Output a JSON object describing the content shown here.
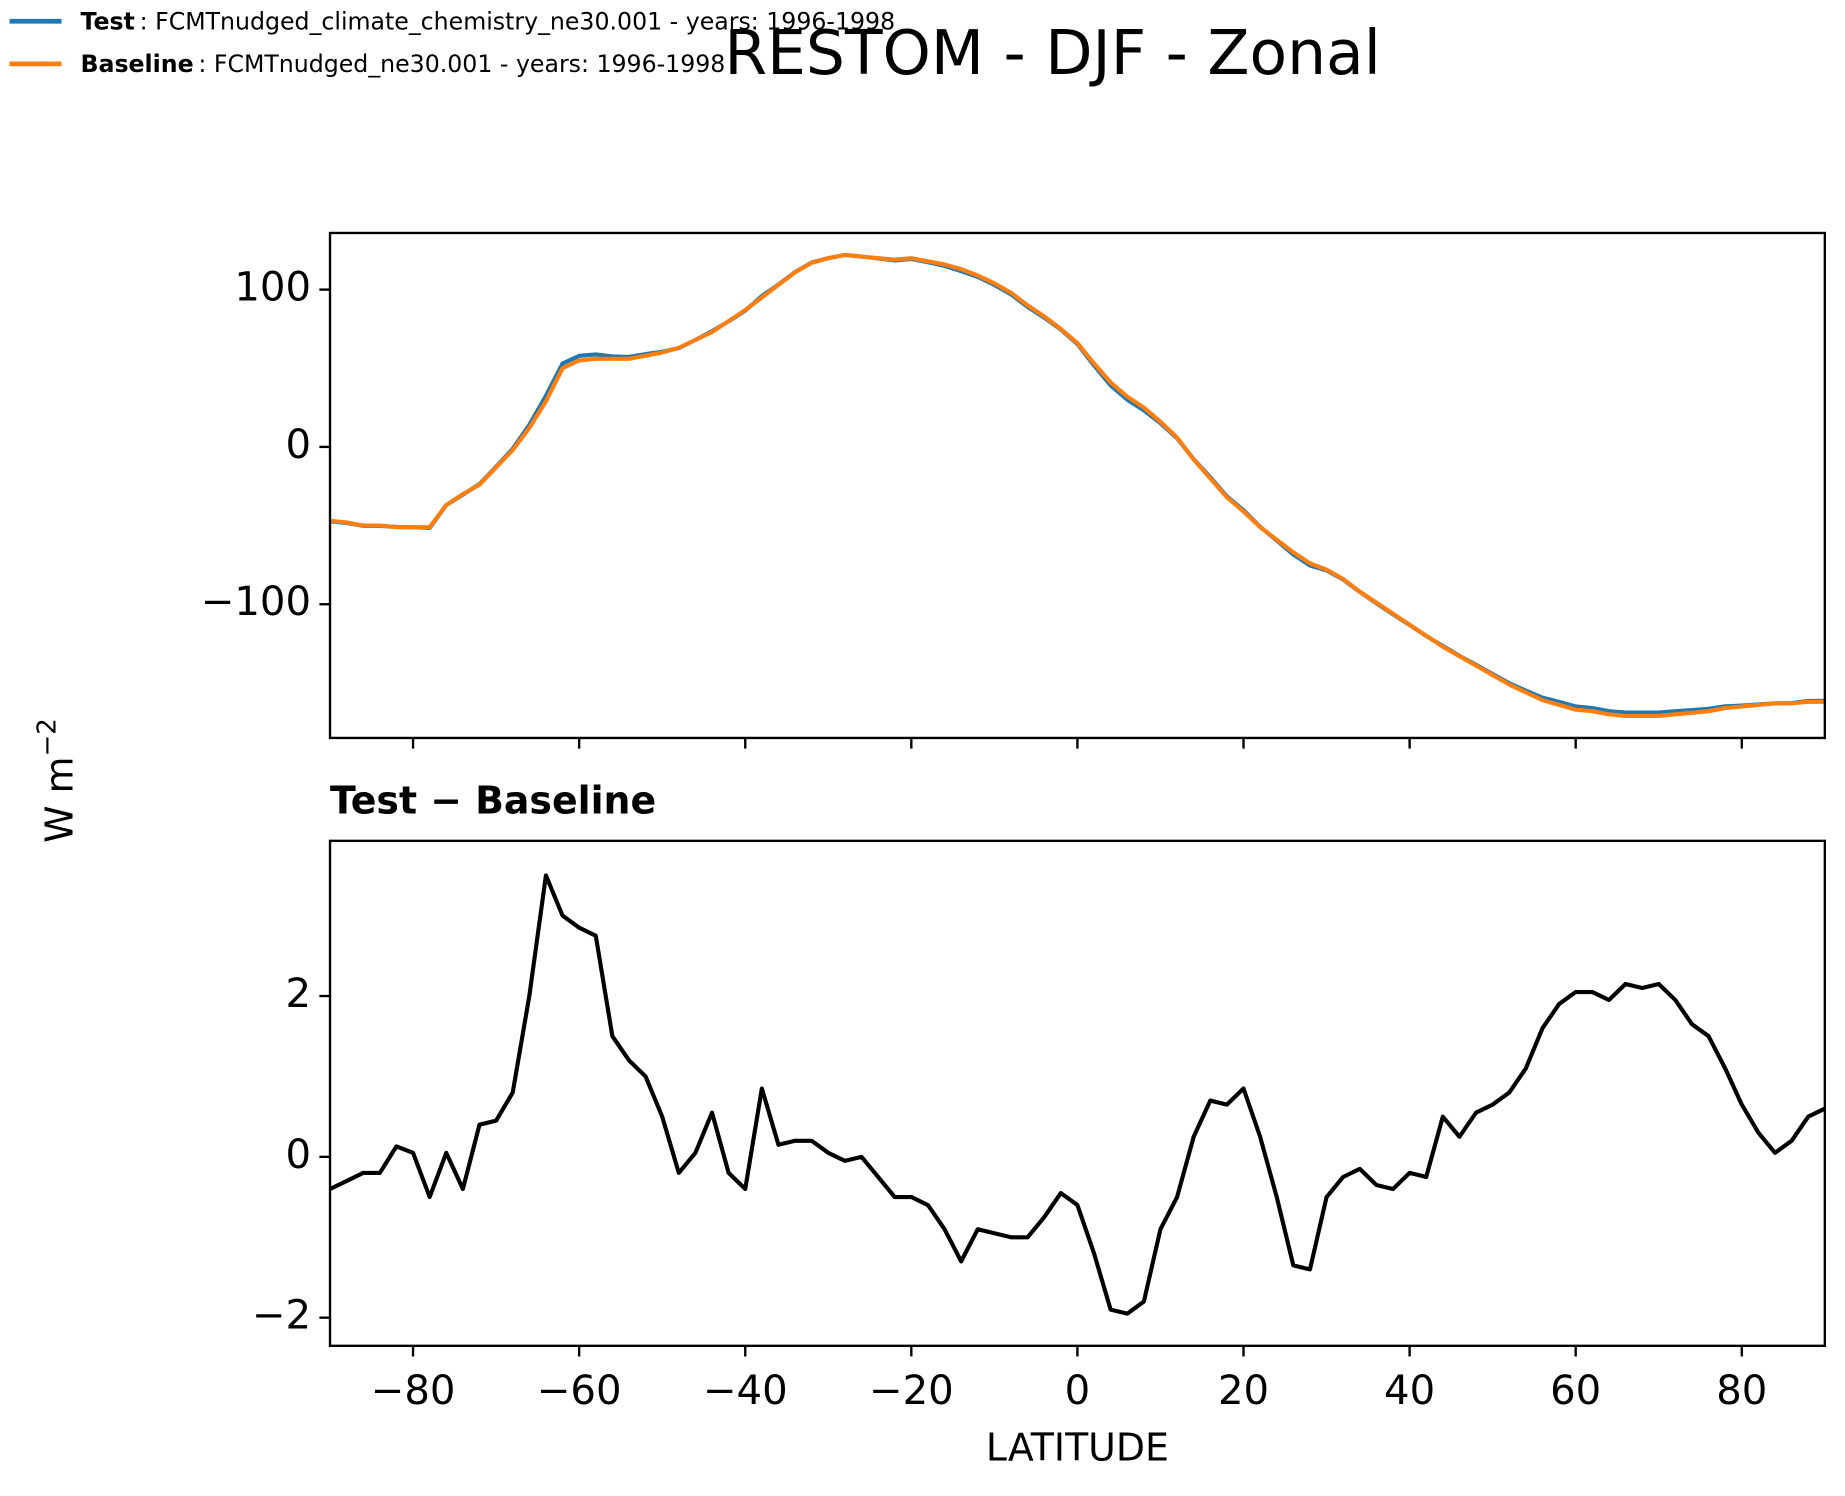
{
  "chart_data": [
    {
      "type": "line",
      "title": "RESTOM - DJF - Zonal",
      "ylabel": "W m",
      "ylabel_superscript": "−2",
      "x": [
        -90,
        -88,
        -86,
        -84,
        -82,
        -80,
        -78,
        -76,
        -74,
        -72,
        -70,
        -68,
        -66,
        -64,
        -62,
        -60,
        -58,
        -56,
        -54,
        -52,
        -50,
        -48,
        -46,
        -44,
        -42,
        -40,
        -38,
        -36,
        -34,
        -32,
        -30,
        -28,
        -26,
        -24,
        -22,
        -20,
        -18,
        -16,
        -14,
        -12,
        -10,
        -8,
        -6,
        -4,
        -2,
        0,
        2,
        4,
        6,
        8,
        10,
        12,
        14,
        16,
        18,
        20,
        22,
        24,
        26,
        28,
        30,
        32,
        34,
        36,
        38,
        40,
        42,
        44,
        46,
        48,
        50,
        52,
        54,
        56,
        58,
        60,
        62,
        64,
        66,
        68,
        70,
        72,
        74,
        76,
        78,
        80,
        82,
        84,
        86,
        88,
        90
      ],
      "series": [
        {
          "name": "Test",
          "legend_text": ": FCMTnudged_climate_chemistry_ne30.001 - years: 1996-1998",
          "color": "#1f77b4",
          "values": [
            -47.4,
            -48.3,
            -50.2,
            -50.2,
            -50.9,
            -51,
            -51.5,
            -37,
            -30.4,
            -23.6,
            -12.6,
            -1.2,
            14,
            32.5,
            53,
            57.9,
            58.8,
            57.5,
            57.2,
            59,
            60.5,
            62.8,
            68,
            73.6,
            79.8,
            86.6,
            95.9,
            103.2,
            111.2,
            117.2,
            120,
            122,
            121,
            119.8,
            118.5,
            119.5,
            117.4,
            115.1,
            111.7,
            108.1,
            103,
            97,
            89,
            82.2,
            74.6,
            65.4,
            51.8,
            39.1,
            30,
            23.2,
            15.1,
            5.5,
            -7.8,
            -19.3,
            -31.4,
            -40.2,
            -50.8,
            -59.5,
            -68.4,
            -75.4,
            -78.5,
            -84.3,
            -92.2,
            -99.4,
            -106.4,
            -113.2,
            -120.2,
            -126.5,
            -132.8,
            -138.5,
            -144.4,
            -150.2,
            -154.9,
            -159.4,
            -162.1,
            -165,
            -166,
            -168,
            -168.9,
            -168.9,
            -168.9,
            -168,
            -167.3,
            -166.5,
            -164.9,
            -164.4,
            -163.7,
            -163,
            -162.8,
            -161.5,
            -161.4
          ]
        },
        {
          "name": "Baseline",
          "legend_text": ": FCMTnudged_ne30.001 - years: 1996-1998",
          "color": "#ff7f0e",
          "values": [
            -47,
            -48,
            -50,
            -50,
            -51,
            -51,
            -51,
            -37,
            -30,
            -24,
            -13,
            -2,
            12,
            29,
            50,
            55,
            56,
            56,
            56,
            58,
            60,
            63,
            68,
            73,
            80,
            87,
            95,
            103,
            111,
            117,
            120,
            122,
            121,
            120,
            119,
            120,
            118,
            116,
            113,
            109,
            104,
            98,
            90,
            83,
            75,
            66,
            53,
            41,
            32,
            25,
            16,
            6,
            -8,
            -20,
            -32,
            -41,
            -51,
            -59,
            -67,
            -74,
            -78,
            -84,
            -92,
            -99,
            -106,
            -113,
            -120,
            -127,
            -133,
            -139,
            -145,
            -151,
            -156,
            -161,
            -164,
            -167,
            -168,
            -170,
            -171,
            -171,
            -171,
            -170,
            -169,
            -168,
            -166,
            -165,
            -164,
            -163,
            -163,
            -162,
            -162
          ]
        }
      ],
      "xlim": [
        -90,
        90
      ],
      "xticks": [
        -80,
        -60,
        -40,
        -20,
        0,
        20,
        40,
        60,
        80
      ],
      "show_xtick_labels": false,
      "ylim": [
        -185,
        136
      ],
      "yticks": [
        {
          "value": -100,
          "label": "−100"
        },
        0,
        100
      ]
    },
    {
      "type": "line",
      "title": "Test − Baseline",
      "xlabel": "LATITUDE",
      "x": [
        -90,
        -88,
        -86,
        -84,
        -82,
        -80,
        -78,
        -76,
        -74,
        -72,
        -70,
        -68,
        -66,
        -64,
        -62,
        -60,
        -58,
        -56,
        -54,
        -52,
        -50,
        -48,
        -46,
        -44,
        -42,
        -40,
        -38,
        -36,
        -34,
        -32,
        -30,
        -28,
        -26,
        -24,
        -22,
        -20,
        -18,
        -16,
        -14,
        -12,
        -10,
        -8,
        -6,
        -4,
        -2,
        0,
        2,
        4,
        6,
        8,
        10,
        12,
        14,
        16,
        18,
        20,
        22,
        24,
        26,
        28,
        30,
        32,
        34,
        36,
        38,
        40,
        42,
        44,
        46,
        48,
        50,
        52,
        54,
        56,
        58,
        60,
        62,
        64,
        66,
        68,
        70,
        72,
        74,
        76,
        78,
        80,
        82,
        84,
        86,
        88,
        90
      ],
      "values": [
        -0.4,
        -0.3,
        -0.2,
        -0.2,
        0.13,
        0.05,
        -0.5,
        0.05,
        -0.4,
        0.4,
        0.45,
        0.8,
        2.0,
        3.5,
        3.0,
        2.85,
        2.75,
        1.5,
        1.2,
        1.0,
        0.5,
        -0.2,
        0.05,
        0.55,
        -0.2,
        -0.4,
        0.85,
        0.15,
        0.2,
        0.2,
        0.05,
        -0.05,
        0,
        -0.25,
        -0.5,
        -0.5,
        -0.6,
        -0.9,
        -1.3,
        -0.9,
        -0.95,
        -1.0,
        -1.0,
        -0.75,
        -0.45,
        -0.6,
        -1.2,
        -1.9,
        -1.95,
        -1.8,
        -0.9,
        -0.5,
        0.25,
        0.7,
        0.65,
        0.85,
        0.25,
        -0.5,
        -1.35,
        -1.4,
        -0.5,
        -0.25,
        -0.15,
        -0.35,
        -0.4,
        -0.2,
        -0.25,
        0.5,
        0.25,
        0.55,
        0.65,
        0.8,
        1.1,
        1.6,
        1.9,
        2.05,
        2.05,
        1.95,
        2.15,
        2.1,
        2.15,
        1.95,
        1.65,
        1.5,
        1.1,
        0.65,
        0.3,
        0.05,
        0.2,
        0.5,
        0.6
      ],
      "color": "#000000",
      "xlim": [
        -90,
        90
      ],
      "xticks": [
        {
          "value": -80,
          "label": "−80"
        },
        {
          "value": -60,
          "label": "−60"
        },
        {
          "value": -40,
          "label": "−40"
        },
        {
          "value": -20,
          "label": "−20"
        },
        0,
        20,
        40,
        60,
        80
      ],
      "show_xtick_labels": true,
      "ylim": [
        -2.35,
        3.93
      ],
      "yticks": [
        {
          "value": -2,
          "label": "−2"
        },
        0,
        2
      ]
    }
  ]
}
